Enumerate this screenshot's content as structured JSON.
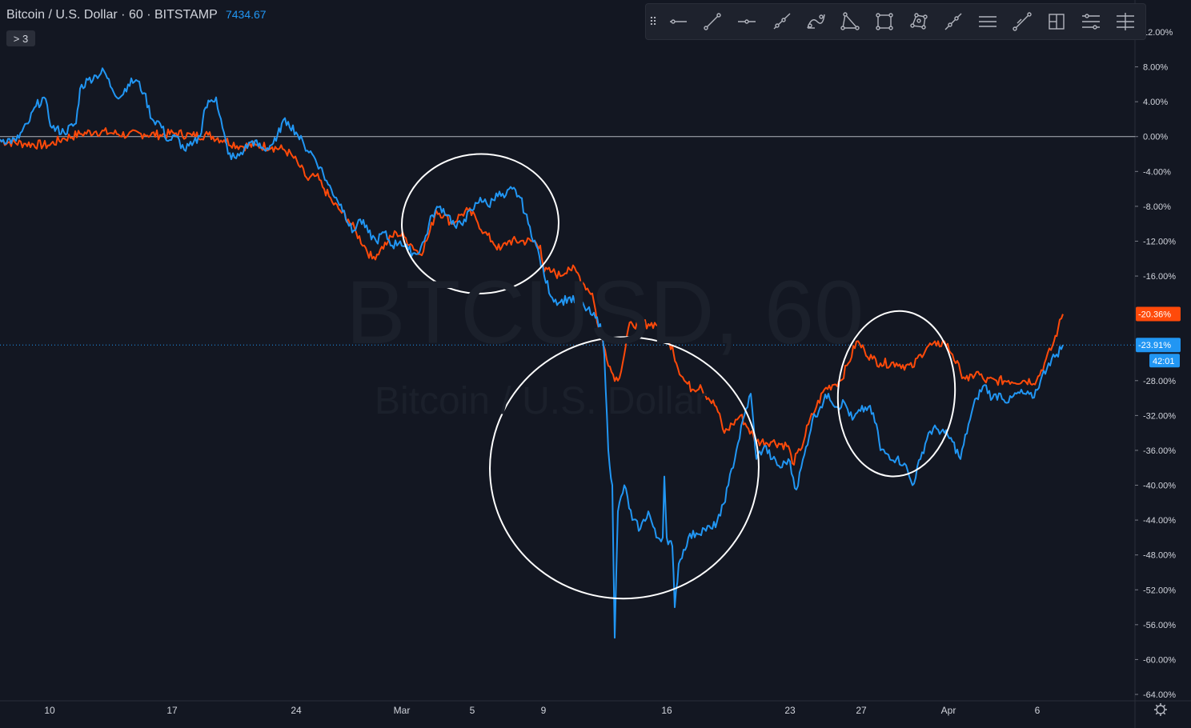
{
  "legend": {
    "symbol": "Bitcoin / U.S. Dollar",
    "interval": "60",
    "exchange": "BITSTAMP",
    "price": "7434.67",
    "indicator_toggle": "> 3"
  },
  "watermark": {
    "main": "BTCUSD, 60",
    "sub": "Bitcoin / U.S. Dollar"
  },
  "toolbar": {
    "handle_icon": "drag-handle-icon",
    "tools": [
      "horizontal-ray-icon",
      "trend-line-icon",
      "horizontal-line-icon",
      "ray-icon",
      "curve-icon",
      "triangle-icon",
      "rectangle-icon",
      "polygon-icon",
      "extended-line-icon",
      "parallel-lines-icon",
      "fib-line-icon",
      "frame-icon",
      "fib-retracement-icon",
      "fib-extension-icon"
    ]
  },
  "chart_data": {
    "type": "line",
    "x_ticks": [
      "10",
      "17",
      "24",
      "Mar",
      "5",
      "9",
      "16",
      "23",
      "27",
      "Apr",
      "6"
    ],
    "y_ticks": [
      "12.00%",
      "8.00%",
      "4.00%",
      "0.00%",
      "-4.00%",
      "-8.00%",
      "-12.00%",
      "-16.00%",
      "-20.36%",
      "-23.91%",
      "-28.00%",
      "-32.00%",
      "-36.00%",
      "-40.00%",
      "-44.00%",
      "-48.00%",
      "-52.00%",
      "-56.00%",
      "-60.00%",
      "-64.00%"
    ],
    "ylim": [
      -64.5,
      12.5
    ],
    "y_unit": "percent",
    "baseline": 0,
    "last_labels": {
      "orange": "-20.36%",
      "blue": "-23.91%",
      "countdown": "42:01"
    },
    "colors": {
      "orange": "#ff4a0a",
      "blue": "#2196f3",
      "background": "#131722",
      "axis_text": "#d1d4dc",
      "baseline": "#b2b5be"
    },
    "series": [
      {
        "color": "#ff4a0a",
        "points": [
          [
            0,
            -0.5
          ],
          [
            30,
            -0.8
          ],
          [
            60,
            -1
          ],
          [
            80,
            -0.2
          ],
          [
            100,
            0.3
          ],
          [
            120,
            0.6
          ],
          [
            140,
            0.4
          ],
          [
            160,
            0.2
          ],
          [
            180,
            0.3
          ],
          [
            200,
            0.2
          ],
          [
            220,
            0.4
          ],
          [
            240,
            0.1
          ],
          [
            260,
            0.2
          ],
          [
            280,
            -0.4
          ],
          [
            300,
            -1.1
          ],
          [
            320,
            -1
          ],
          [
            340,
            -1.2
          ],
          [
            355,
            -1.5
          ],
          [
            365,
            -2.2
          ],
          [
            375,
            -3.5
          ],
          [
            385,
            -5
          ],
          [
            395,
            -4.5
          ],
          [
            405,
            -6
          ],
          [
            415,
            -7.5
          ],
          [
            425,
            -8.5
          ],
          [
            435,
            -9.5
          ],
          [
            445,
            -11
          ],
          [
            455,
            -12.5
          ],
          [
            465,
            -14
          ],
          [
            475,
            -13
          ],
          [
            485,
            -12
          ],
          [
            495,
            -11
          ],
          [
            505,
            -11.5
          ],
          [
            515,
            -12.5
          ],
          [
            525,
            -13.5
          ],
          [
            535,
            -11.5
          ],
          [
            545,
            -8.5
          ],
          [
            555,
            -9
          ],
          [
            565,
            -10
          ],
          [
            575,
            -9
          ],
          [
            585,
            -8.5
          ],
          [
            595,
            -9.5
          ],
          [
            605,
            -11
          ],
          [
            615,
            -12
          ],
          [
            625,
            -13
          ],
          [
            635,
            -12
          ],
          [
            650,
            -12
          ],
          [
            665,
            -12
          ],
          [
            675,
            -12.5
          ],
          [
            680,
            -15.5
          ],
          [
            690,
            -15.5
          ],
          [
            700,
            -16
          ],
          [
            710,
            -15
          ],
          [
            720,
            -15.5
          ],
          [
            730,
            -17
          ],
          [
            740,
            -18
          ],
          [
            748,
            -22
          ],
          [
            756,
            -24.5
          ],
          [
            764,
            -27
          ],
          [
            772,
            -28
          ],
          [
            780,
            -25
          ],
          [
            785,
            -22
          ],
          [
            790,
            -21.5
          ],
          [
            810,
            -21.5
          ],
          [
            828,
            -21.5
          ],
          [
            832,
            -23.5
          ],
          [
            840,
            -24
          ],
          [
            845,
            -26
          ],
          [
            855,
            -28
          ],
          [
            865,
            -29
          ],
          [
            875,
            -28.5
          ],
          [
            885,
            -30
          ],
          [
            895,
            -31
          ],
          [
            905,
            -34
          ],
          [
            915,
            -33
          ],
          [
            925,
            -32
          ],
          [
            935,
            -33.5
          ],
          [
            945,
            -35
          ],
          [
            965,
            -35
          ],
          [
            985,
            -35.5
          ],
          [
            990,
            -37.5
          ],
          [
            1000,
            -36
          ],
          [
            1010,
            -33
          ],
          [
            1020,
            -31
          ],
          [
            1030,
            -29
          ],
          [
            1040,
            -28.5
          ],
          [
            1050,
            -28
          ],
          [
            1060,
            -26
          ],
          [
            1070,
            -23.5
          ],
          [
            1080,
            -24.5
          ],
          [
            1090,
            -25.5
          ],
          [
            1100,
            -26
          ],
          [
            1120,
            -26
          ],
          [
            1140,
            -26.5
          ],
          [
            1150,
            -25
          ],
          [
            1160,
            -24
          ],
          [
            1170,
            -24
          ],
          [
            1180,
            -23.5
          ],
          [
            1190,
            -25
          ],
          [
            1200,
            -27
          ],
          [
            1210,
            -28
          ],
          [
            1220,
            -27
          ],
          [
            1230,
            -28
          ],
          [
            1245,
            -28
          ],
          [
            1260,
            -28
          ],
          [
            1280,
            -28
          ],
          [
            1295,
            -28
          ],
          [
            1305,
            -26
          ],
          [
            1315,
            -24
          ],
          [
            1322,
            -22
          ],
          [
            1328,
            -20.36
          ]
        ]
      },
      {
        "color": "#2196f3",
        "points": [
          [
            0,
            -0.3
          ],
          [
            20,
            -0.5
          ],
          [
            35,
            1.5
          ],
          [
            45,
            3.5
          ],
          [
            55,
            4.5
          ],
          [
            65,
            1
          ],
          [
            80,
            0.5
          ],
          [
            95,
            1.5
          ],
          [
            100,
            5.5
          ],
          [
            110,
            6.5
          ],
          [
            120,
            7
          ],
          [
            130,
            7.5
          ],
          [
            140,
            5.5
          ],
          [
            150,
            4.5
          ],
          [
            160,
            6
          ],
          [
            170,
            6.5
          ],
          [
            180,
            5
          ],
          [
            190,
            2
          ],
          [
            200,
            1.5
          ],
          [
            210,
            -0.5
          ],
          [
            220,
            0
          ],
          [
            230,
            -1.5
          ],
          [
            240,
            -1
          ],
          [
            250,
            0
          ],
          [
            255,
            3
          ],
          [
            262,
            4
          ],
          [
            270,
            4.5
          ],
          [
            278,
            1
          ],
          [
            285,
            -2
          ],
          [
            295,
            -2.5
          ],
          [
            305,
            -1.5
          ],
          [
            315,
            -0.5
          ],
          [
            330,
            -1.5
          ],
          [
            345,
            -0.5
          ],
          [
            352,
            1.5
          ],
          [
            360,
            1.7
          ],
          [
            370,
            0.5
          ],
          [
            380,
            -1
          ],
          [
            390,
            -2
          ],
          [
            400,
            -3.5
          ],
          [
            410,
            -5.5
          ],
          [
            420,
            -7
          ],
          [
            430,
            -8.5
          ],
          [
            440,
            -11
          ],
          [
            450,
            -9.5
          ],
          [
            460,
            -11
          ],
          [
            470,
            -12
          ],
          [
            480,
            -11
          ],
          [
            490,
            -12.5
          ],
          [
            500,
            -12
          ],
          [
            510,
            -13
          ],
          [
            520,
            -13.5
          ],
          [
            530,
            -12
          ],
          [
            540,
            -9
          ],
          [
            550,
            -8
          ],
          [
            560,
            -9
          ],
          [
            570,
            -10.5
          ],
          [
            580,
            -9.5
          ],
          [
            590,
            -8.5
          ],
          [
            600,
            -7
          ],
          [
            610,
            -8
          ],
          [
            620,
            -6.5
          ],
          [
            630,
            -7
          ],
          [
            640,
            -6
          ],
          [
            650,
            -7
          ],
          [
            660,
            -10
          ],
          [
            670,
            -12.5
          ],
          [
            680,
            -16
          ],
          [
            690,
            -18.5
          ],
          [
            700,
            -19
          ],
          [
            710,
            -18.5
          ],
          [
            720,
            -19
          ],
          [
            730,
            -19.5
          ],
          [
            740,
            -20.5
          ],
          [
            750,
            -21.5
          ],
          [
            755,
            -25
          ],
          [
            760,
            -36
          ],
          [
            765,
            -40
          ],
          [
            768,
            -57.5
          ],
          [
            772,
            -43
          ],
          [
            780,
            -40
          ],
          [
            790,
            -44
          ],
          [
            800,
            -45
          ],
          [
            810,
            -43
          ],
          [
            820,
            -46
          ],
          [
            828,
            -46
          ],
          [
            830,
            -39
          ],
          [
            833,
            -46
          ],
          [
            840,
            -47
          ],
          [
            843,
            -54
          ],
          [
            848,
            -49
          ],
          [
            860,
            -46
          ],
          [
            870,
            -45.5
          ],
          [
            880,
            -45
          ],
          [
            890,
            -45
          ],
          [
            900,
            -43.5
          ],
          [
            910,
            -40
          ],
          [
            920,
            -36
          ],
          [
            930,
            -32
          ],
          [
            938,
            -29.5
          ],
          [
            945,
            -37
          ],
          [
            955,
            -35.5
          ],
          [
            965,
            -37
          ],
          [
            975,
            -38
          ],
          [
            985,
            -37
          ],
          [
            995,
            -40.5
          ],
          [
            1005,
            -36.5
          ],
          [
            1015,
            -32.5
          ],
          [
            1025,
            -31
          ],
          [
            1035,
            -29.5
          ],
          [
            1045,
            -31
          ],
          [
            1055,
            -30.5
          ],
          [
            1065,
            -32.5
          ],
          [
            1075,
            -31.5
          ],
          [
            1085,
            -31
          ],
          [
            1095,
            -33
          ],
          [
            1100,
            -36
          ],
          [
            1110,
            -36.5
          ],
          [
            1120,
            -37
          ],
          [
            1130,
            -37.5
          ],
          [
            1140,
            -40
          ],
          [
            1150,
            -37
          ],
          [
            1160,
            -34
          ],
          [
            1170,
            -33.5
          ],
          [
            1180,
            -34
          ],
          [
            1190,
            -35
          ],
          [
            1200,
            -37
          ],
          [
            1210,
            -33
          ],
          [
            1220,
            -30
          ],
          [
            1230,
            -28.5
          ],
          [
            1240,
            -30
          ],
          [
            1250,
            -29.5
          ],
          [
            1260,
            -30.5
          ],
          [
            1270,
            -29.5
          ],
          [
            1280,
            -29.5
          ],
          [
            1290,
            -30
          ],
          [
            1300,
            -28
          ],
          [
            1310,
            -26
          ],
          [
            1320,
            -25
          ],
          [
            1328,
            -23.91
          ]
        ]
      }
    ],
    "annotations": [
      {
        "kind": "ellipse",
        "cx": 600,
        "cy": -10,
        "rx": 98,
        "ry": 8
      },
      {
        "kind": "ellipse",
        "cx": 780,
        "cy": -38,
        "rx": 168,
        "ry": 15
      },
      {
        "kind": "ellipse",
        "cx": 1120,
        "cy": -29.5,
        "rx": 73,
        "ry": 9.5
      }
    ]
  }
}
